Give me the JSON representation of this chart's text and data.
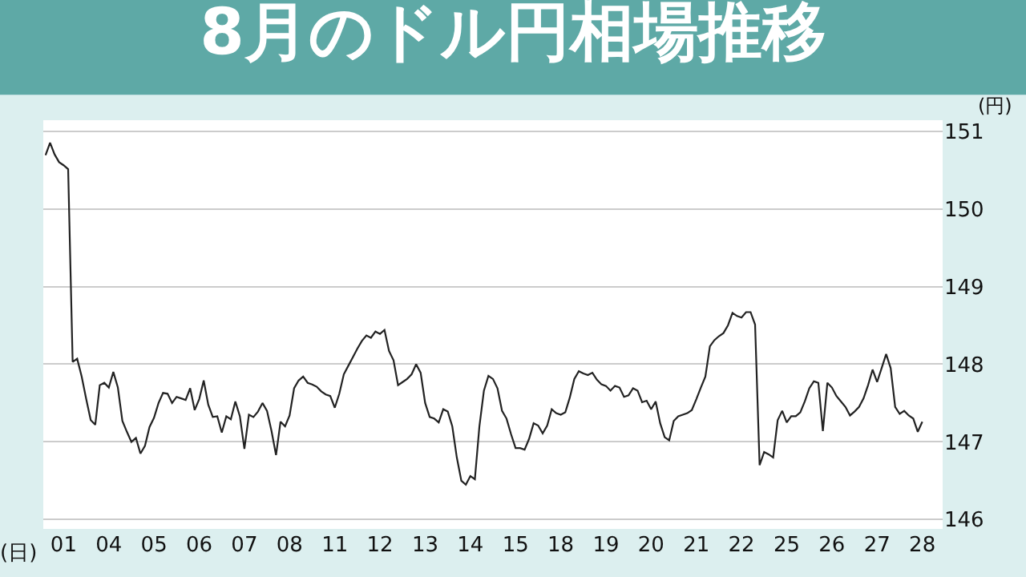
{
  "chart_data": {
    "type": "line",
    "title": "8月のドル円相場推移",
    "xlabel": "(日)",
    "ylabel": "(円)",
    "categories": [
      null,
      null,
      null,
      null,
      "01",
      null,
      null,
      null,
      null,
      null,
      null,
      null,
      null,
      null,
      "04",
      null,
      null,
      null,
      null,
      null,
      null,
      null,
      null,
      null,
      "05",
      null,
      null,
      null,
      null,
      null,
      null,
      null,
      null,
      null,
      "06",
      null,
      null,
      null,
      null,
      null,
      null,
      null,
      null,
      null,
      "07",
      null,
      null,
      null,
      null,
      null,
      null,
      null,
      null,
      null,
      "08",
      null,
      null,
      null,
      null,
      null,
      null,
      null,
      null,
      null,
      "11",
      null,
      null,
      null,
      null,
      null,
      null,
      null,
      null,
      null,
      "12",
      null,
      null,
      null,
      null,
      null,
      null,
      null,
      null,
      null,
      "13",
      null,
      null,
      null,
      null,
      null,
      null,
      null,
      null,
      null,
      "14",
      null,
      null,
      null,
      null,
      null,
      null,
      null,
      null,
      null,
      "15",
      null,
      null,
      null,
      null,
      null,
      null,
      null,
      null,
      null,
      "18",
      null,
      null,
      null,
      null,
      null,
      null,
      null,
      null,
      null,
      "19",
      null,
      null,
      null,
      null,
      null,
      null,
      null,
      null,
      null,
      "20",
      null,
      null,
      null,
      null,
      null,
      null,
      null,
      null,
      null,
      "21",
      null,
      null,
      null,
      null,
      null,
      null,
      null,
      null,
      null,
      "22",
      null,
      null,
      null,
      null,
      null,
      null,
      null,
      null,
      null,
      "25",
      null,
      null,
      null,
      null,
      null,
      null,
      null,
      null,
      null,
      "26",
      null,
      null,
      null,
      null,
      null,
      null,
      null,
      null,
      null,
      "27",
      null,
      null,
      null,
      null,
      null,
      null,
      null,
      null,
      null,
      "28"
    ],
    "ylim": [
      145.88,
      151.14
    ],
    "yticks": [
      146,
      147,
      148,
      149,
      150,
      151
    ],
    "grid": "y",
    "marker": "none",
    "line_style": "solid",
    "series": [
      {
        "color": "#222222",
        "values": [
          150.69,
          150.85,
          150.7,
          150.6,
          150.56,
          150.51,
          148.03,
          148.07,
          147.84,
          147.55,
          147.28,
          147.22,
          147.73,
          147.76,
          147.7,
          147.9,
          147.7,
          147.27,
          147.13,
          147.0,
          147.05,
          146.85,
          146.95,
          147.19,
          147.31,
          147.5,
          147.63,
          147.62,
          147.5,
          147.58,
          147.56,
          147.54,
          147.69,
          147.41,
          147.55,
          147.79,
          147.48,
          147.32,
          147.33,
          147.12,
          147.33,
          147.29,
          147.52,
          147.33,
          146.91,
          147.35,
          147.32,
          147.39,
          147.5,
          147.4,
          147.14,
          146.83,
          147.26,
          147.2,
          147.34,
          147.69,
          147.79,
          147.84,
          147.76,
          147.74,
          147.71,
          147.65,
          147.61,
          147.59,
          147.44,
          147.62,
          147.87,
          147.98,
          148.09,
          148.2,
          148.3,
          148.37,
          148.34,
          148.42,
          148.39,
          148.44,
          148.17,
          148.05,
          147.73,
          147.77,
          147.81,
          147.87,
          148.0,
          147.89,
          147.5,
          147.32,
          147.3,
          147.25,
          147.42,
          147.39,
          147.2,
          146.8,
          146.5,
          146.45,
          146.56,
          146.52,
          147.2,
          147.66,
          147.85,
          147.81,
          147.69,
          147.4,
          147.3,
          147.1,
          146.92,
          146.92,
          146.9,
          147.04,
          147.24,
          147.21,
          147.11,
          147.21,
          147.42,
          147.37,
          147.35,
          147.38,
          147.57,
          147.81,
          147.91,
          147.88,
          147.86,
          147.89,
          147.8,
          147.74,
          147.72,
          147.66,
          147.72,
          147.7,
          147.58,
          147.6,
          147.69,
          147.66,
          147.51,
          147.53,
          147.42,
          147.52,
          147.24,
          147.06,
          147.02,
          147.27,
          147.33,
          147.35,
          147.37,
          147.41,
          147.55,
          147.7,
          147.84,
          148.23,
          148.31,
          148.36,
          148.4,
          148.5,
          148.66,
          148.62,
          148.6,
          148.67,
          148.67,
          148.51,
          146.7,
          146.87,
          146.84,
          146.8,
          147.28,
          147.4,
          147.25,
          147.33,
          147.33,
          147.38,
          147.52,
          147.69,
          147.78,
          147.76,
          147.14,
          147.76,
          147.7,
          147.59,
          147.52,
          147.45,
          147.34,
          147.39,
          147.45,
          147.56,
          147.73,
          147.93,
          147.77,
          147.95,
          148.13,
          147.95,
          147.45,
          147.36,
          147.4,
          147.34,
          147.3,
          147.13,
          147.26
        ]
      }
    ]
  }
}
